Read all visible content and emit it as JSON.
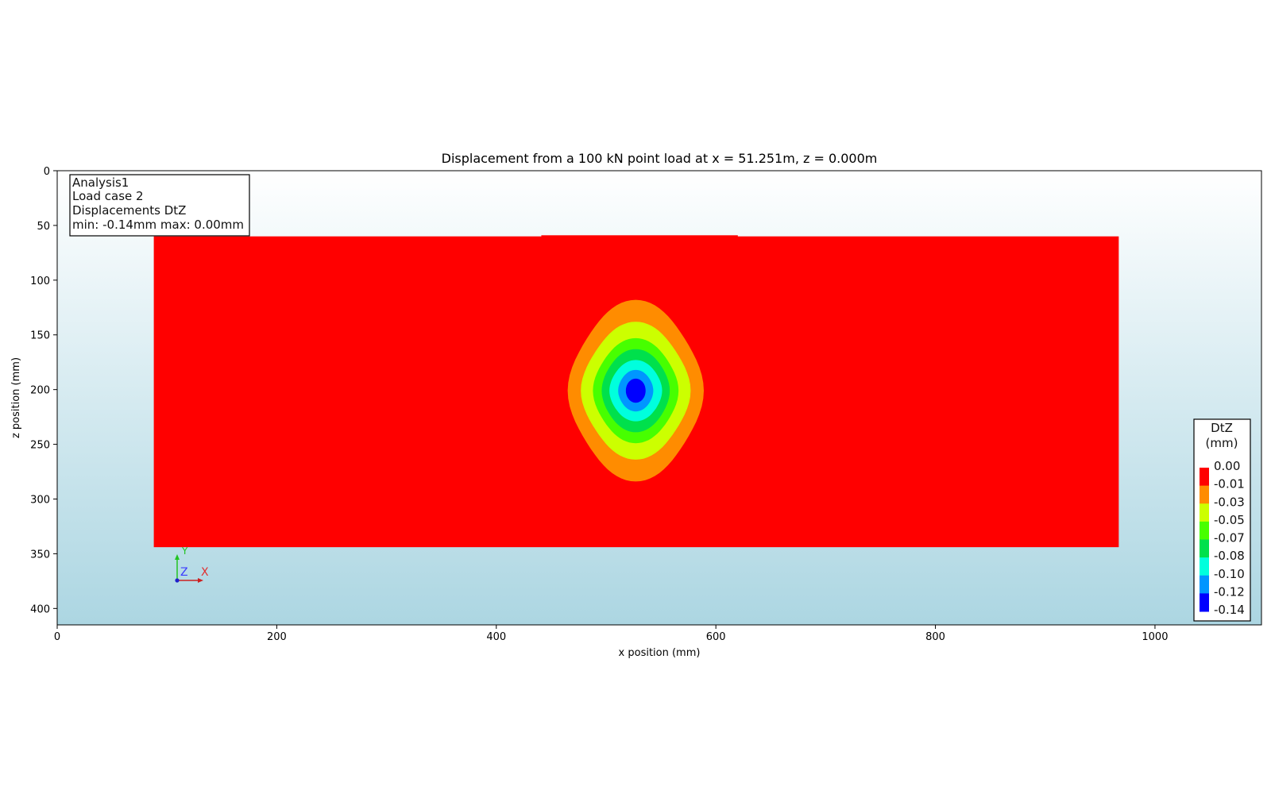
{
  "chart_data": {
    "type": "heatmap",
    "title": "Displacement from a 100 kN point load at x = 51.251m, z = 0.000m",
    "xlabel": "x position (mm)",
    "ylabel": "z position (mm)",
    "xlim": [
      0,
      1097
    ],
    "ylim": [
      415,
      0
    ],
    "x_ticks": [
      0,
      200,
      400,
      600,
      800,
      1000
    ],
    "y_ticks": [
      0,
      50,
      100,
      150,
      200,
      250,
      300,
      350,
      400
    ],
    "slab": {
      "x_min": 88,
      "x_max": 967,
      "z_min": 60,
      "z_max": 344
    },
    "slab_top_bump": {
      "x_min": 441,
      "x_max": 620,
      "z_top": 59
    },
    "load_point": {
      "x": 527,
      "z": 201
    },
    "contours": [
      {
        "level": "-0.01",
        "color": "#ff8c00",
        "rx": 51,
        "rz": 83,
        "side_rx": 62
      },
      {
        "level": "-0.03",
        "color": "#ccff00",
        "rx": 42,
        "rz": 63,
        "side_rx": 50
      },
      {
        "level": "-0.05",
        "color": "#47ff00",
        "rx": 34,
        "rz": 48,
        "side_rx": 39
      },
      {
        "level": "-0.07",
        "color": "#00e04c",
        "rx": 28,
        "rz": 38,
        "side_rx": 31
      },
      {
        "level": "-0.08",
        "color": "#00ffdd",
        "rx": 22,
        "rz": 28,
        "side_rx": 24
      },
      {
        "level": "-0.10",
        "color": "#0096ff",
        "rx": 15,
        "rz": 19,
        "side_rx": 16
      },
      {
        "level": "-0.12",
        "color": "#0000ff",
        "rx": 9,
        "rz": 11,
        "side_rx": 9
      }
    ],
    "info_box": [
      "Analysis1",
      "Load case 2",
      "Displacements DtZ",
      "min: -0.14mm max:  0.00mm"
    ],
    "legend": {
      "title_line1": "DtZ",
      "title_line2": "(mm)",
      "labels": [
        "0.00",
        "-0.01",
        "-0.03",
        "-0.05",
        "-0.07",
        "-0.08",
        "-0.10",
        "-0.12",
        "-0.14"
      ],
      "colors": [
        "#ff0000",
        "#ff8c00",
        "#ccff00",
        "#47ff00",
        "#00e04c",
        "#00ffdd",
        "#0096ff",
        "#0000ff"
      ],
      "position": "bottom-right"
    },
    "triad": {
      "y_label": "Y",
      "z_label": "Z",
      "x_label": "X"
    },
    "colors": {
      "slab": "#ff0000",
      "bg_top": "#ffffff",
      "bg_bottom": "#acd6e2"
    }
  }
}
